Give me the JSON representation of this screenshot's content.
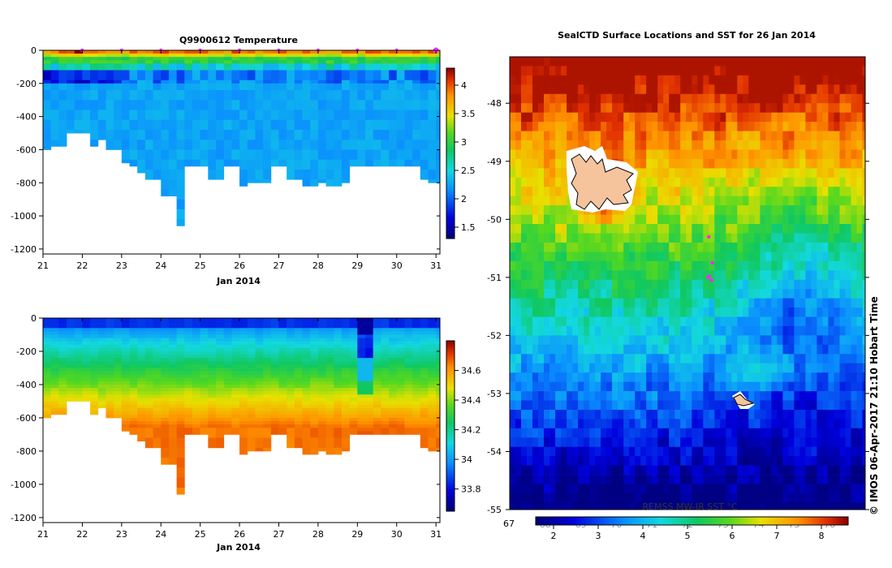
{
  "page": {
    "credit": "© IMOS 06-Apr-2017 21:10 Hobart Time"
  },
  "chart_data": [
    {
      "type": "heatmap",
      "title": "Q9900612  Temperature",
      "xlabel": "Jan 2014",
      "ylabel": "",
      "x_ticks": [
        "21",
        "22",
        "23",
        "24",
        "25",
        "26",
        "27",
        "28",
        "29",
        "30",
        "31"
      ],
      "x_range": [
        21,
        31.1
      ],
      "y_ticks": [
        0,
        -200,
        -400,
        -600,
        -800,
        -1000,
        -1200
      ],
      "ylim": [
        -1230,
        0
      ],
      "profile_times": [
        21.0,
        21.2,
        21.4,
        21.6,
        21.8,
        22.0,
        22.2,
        22.4,
        22.6,
        22.8,
        23.0,
        23.2,
        23.4,
        23.6,
        23.8,
        24.0,
        24.2,
        24.4,
        24.6,
        24.8,
        25.0,
        25.2,
        25.4,
        25.6,
        25.8,
        26.0,
        26.2,
        26.4,
        26.6,
        26.8,
        27.0,
        27.2,
        27.4,
        27.6,
        27.8,
        28.0,
        28.2,
        28.4,
        28.6,
        28.8,
        29.0,
        29.2,
        29.4,
        29.6,
        29.8,
        30.0,
        30.2,
        30.4,
        30.6,
        30.8,
        31.0
      ],
      "max_depths": [
        600,
        570,
        580,
        500,
        500,
        500,
        580,
        540,
        600,
        600,
        670,
        700,
        730,
        780,
        780,
        880,
        880,
        1050,
        700,
        700,
        700,
        770,
        770,
        700,
        700,
        820,
        800,
        790,
        790,
        700,
        700,
        780,
        780,
        810,
        820,
        800,
        810,
        810,
        800,
        700,
        700,
        700,
        700,
        700,
        700,
        700,
        700,
        700,
        770,
        790,
        800
      ],
      "surface_marker_times": [
        22,
        23,
        24,
        25,
        26,
        27,
        28,
        29,
        30,
        31
      ],
      "colorbar": {
        "ticks": [
          1.5,
          2,
          2.5,
          3,
          3.5,
          4
        ],
        "range": [
          1.3,
          4.3
        ]
      }
    },
    {
      "type": "heatmap",
      "title": "",
      "xlabel": "Jan 2014",
      "ylabel": "",
      "x_ticks": [
        "21",
        "22",
        "23",
        "24",
        "25",
        "26",
        "27",
        "28",
        "29",
        "30",
        "31"
      ],
      "x_range": [
        21,
        31.1
      ],
      "y_ticks": [
        0,
        -200,
        -400,
        -600,
        -800,
        -1000,
        -1200
      ],
      "ylim": [
        -1230,
        0
      ],
      "colorbar": {
        "ticks": [
          33.8,
          34,
          34.2,
          34.4,
          34.6
        ],
        "range": [
          33.65,
          34.8
        ]
      }
    },
    {
      "type": "heatmap",
      "title": "SealCTD Surface Locations and SST for 26 Jan 2014",
      "x_range": [
        67,
        77
      ],
      "y_ticks": [
        -48,
        -49,
        -50,
        -51,
        -52,
        -53,
        -54,
        -55
      ],
      "ylim": [
        -55,
        -47.2
      ],
      "x_ticks_first": "67",
      "track_points": [
        [
          72.6,
          -50.3
        ],
        [
          72.7,
          -50.75
        ],
        [
          72.62,
          -50.98
        ],
        [
          72.68,
          -51.05
        ],
        [
          72.58,
          -51.0
        ]
      ],
      "colorbar": {
        "ticks": [
          2,
          3,
          4,
          5,
          6,
          7,
          8
        ],
        "range": [
          1.6,
          8.6
        ],
        "label": "REMSS MW-IR SST °C",
        "hidden_ticks": [
          "68",
          "69",
          "70",
          "71",
          "72",
          "73",
          "74",
          "75",
          "76"
        ]
      }
    }
  ]
}
